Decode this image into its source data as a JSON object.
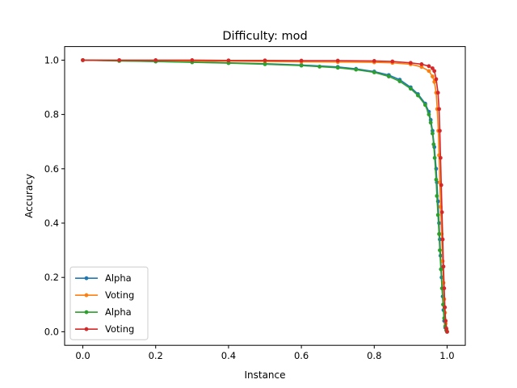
{
  "chart_data": {
    "type": "line",
    "title": "Difficulty: mod",
    "xlabel": "Instance",
    "ylabel": "Accuracy",
    "xlim": [
      -0.05,
      1.05
    ],
    "ylim": [
      -0.05,
      1.05
    ],
    "xticks": [
      0.0,
      0.2,
      0.4,
      0.6,
      0.8,
      1.0
    ],
    "yticks": [
      0.0,
      0.2,
      0.4,
      0.6,
      0.8,
      1.0
    ],
    "xtick_labels": [
      "0.0",
      "0.2",
      "0.4",
      "0.6",
      "0.8",
      "1.0"
    ],
    "ytick_labels": [
      "0.0",
      "0.2",
      "0.4",
      "0.6",
      "0.8",
      "1.0"
    ],
    "grid": false,
    "legend_position": "lower-left",
    "series": [
      {
        "name": "Alpha",
        "color": "#1f77b4",
        "marker": "circle",
        "x": [
          0.0,
          0.1,
          0.2,
          0.3,
          0.4,
          0.5,
          0.6,
          0.7,
          0.75,
          0.8,
          0.84,
          0.87,
          0.9,
          0.92,
          0.94,
          0.95,
          0.955,
          0.96,
          0.965,
          0.97,
          0.972,
          0.975,
          0.978,
          0.98,
          0.982,
          0.985,
          0.988,
          0.99,
          0.992,
          0.995,
          0.998,
          1.0
        ],
        "y": [
          1.0,
          0.998,
          0.995,
          0.993,
          0.99,
          0.987,
          0.982,
          0.975,
          0.968,
          0.958,
          0.945,
          0.928,
          0.9,
          0.875,
          0.84,
          0.81,
          0.78,
          0.74,
          0.68,
          0.6,
          0.55,
          0.48,
          0.4,
          0.34,
          0.28,
          0.2,
          0.13,
          0.08,
          0.04,
          0.015,
          0.005,
          0.0
        ]
      },
      {
        "name": "Voting",
        "color": "#ff7f0e",
        "marker": "circle",
        "x": [
          0.0,
          0.1,
          0.2,
          0.3,
          0.4,
          0.5,
          0.6,
          0.7,
          0.8,
          0.85,
          0.9,
          0.93,
          0.95,
          0.96,
          0.965,
          0.97,
          0.973,
          0.976,
          0.978,
          0.98,
          0.982,
          0.985,
          0.988,
          0.99,
          0.992,
          0.994,
          0.996,
          0.998,
          1.0
        ],
        "y": [
          1.0,
          0.999,
          0.998,
          0.997,
          0.996,
          0.995,
          0.994,
          0.993,
          0.992,
          0.99,
          0.985,
          0.975,
          0.96,
          0.94,
          0.92,
          0.88,
          0.82,
          0.74,
          0.65,
          0.55,
          0.46,
          0.36,
          0.26,
          0.18,
          0.12,
          0.07,
          0.03,
          0.01,
          0.0
        ]
      },
      {
        "name": "Alpha",
        "color": "#2ca02c",
        "marker": "circle",
        "x": [
          0.0,
          0.1,
          0.2,
          0.3,
          0.4,
          0.5,
          0.6,
          0.65,
          0.7,
          0.75,
          0.8,
          0.84,
          0.87,
          0.9,
          0.92,
          0.94,
          0.95,
          0.955,
          0.96,
          0.963,
          0.966,
          0.97,
          0.972,
          0.975,
          0.978,
          0.98,
          0.983,
          0.986,
          0.989,
          0.992,
          0.995,
          0.998,
          1.0
        ],
        "y": [
          1.0,
          0.997,
          0.995,
          0.992,
          0.989,
          0.985,
          0.98,
          0.976,
          0.972,
          0.965,
          0.955,
          0.94,
          0.922,
          0.895,
          0.87,
          0.835,
          0.8,
          0.77,
          0.73,
          0.69,
          0.64,
          0.56,
          0.5,
          0.43,
          0.36,
          0.3,
          0.23,
          0.16,
          0.1,
          0.05,
          0.02,
          0.005,
          0.0
        ]
      },
      {
        "name": "Voting",
        "color": "#d62728",
        "marker": "circle",
        "x": [
          0.0,
          0.1,
          0.2,
          0.3,
          0.4,
          0.5,
          0.6,
          0.7,
          0.8,
          0.85,
          0.9,
          0.93,
          0.95,
          0.96,
          0.965,
          0.97,
          0.975,
          0.978,
          0.98,
          0.982,
          0.984,
          0.986,
          0.988,
          0.99,
          0.992,
          0.994,
          0.996,
          0.998,
          1.0
        ],
        "y": [
          1.0,
          1.0,
          1.0,
          1.0,
          0.999,
          0.999,
          0.998,
          0.998,
          0.997,
          0.995,
          0.99,
          0.985,
          0.978,
          0.97,
          0.96,
          0.93,
          0.88,
          0.82,
          0.74,
          0.64,
          0.54,
          0.44,
          0.34,
          0.24,
          0.16,
          0.09,
          0.04,
          0.012,
          0.0
        ]
      }
    ]
  }
}
